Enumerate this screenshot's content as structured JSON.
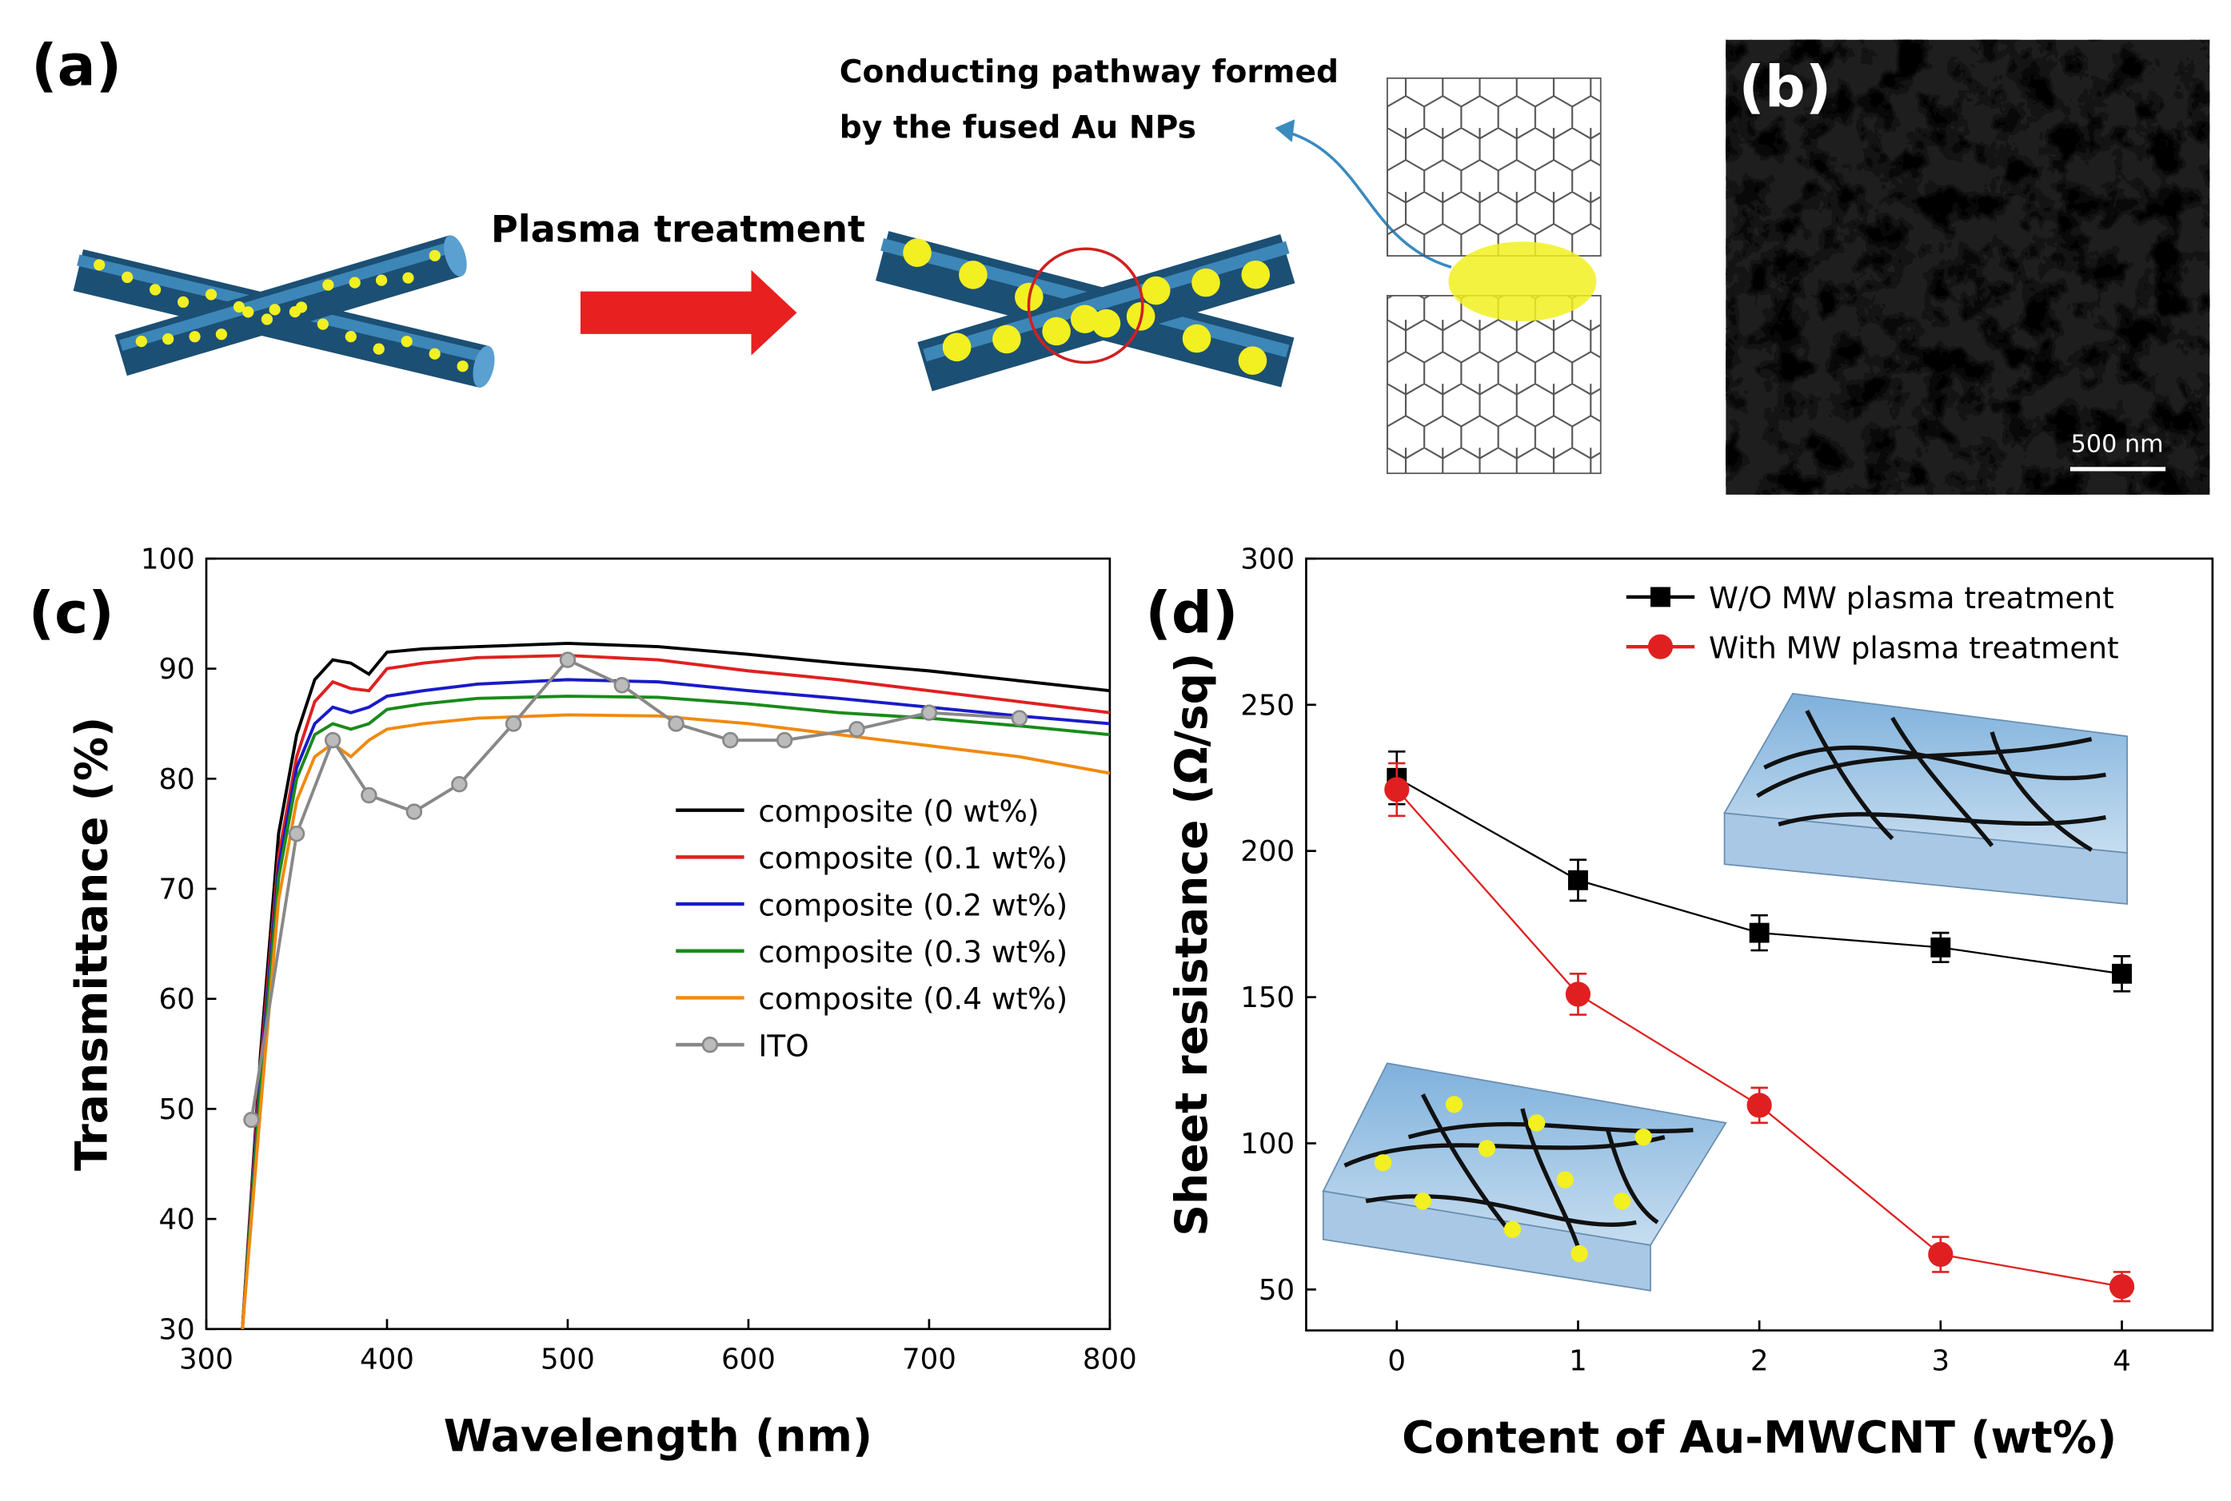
{
  "panel_a": {
    "label": "(a)",
    "process": "Plasma treatment",
    "annotation": [
      "Conducting pathway formed",
      "by the fused Au NPs"
    ]
  },
  "panel_b": {
    "label": "(b)",
    "scale_bar": "500 nm"
  },
  "chart_data": [
    {
      "type": "line",
      "panel_label": "(c)",
      "x_label": "Wavelength (nm)",
      "y_label": "Transmittance (%)",
      "xlim": [
        300,
        800
      ],
      "ylim": [
        30,
        100
      ],
      "xticks": [
        300,
        400,
        500,
        600,
        700,
        800
      ],
      "yticks": [
        30,
        40,
        50,
        60,
        70,
        80,
        90,
        100
      ],
      "legend": "center right",
      "x": [
        320,
        330,
        340,
        350,
        360,
        370,
        380,
        390,
        400,
        420,
        450,
        500,
        550,
        600,
        650,
        700,
        750,
        800
      ],
      "series": [
        {
          "name": "composite (0 wt%)",
          "color": "#000000",
          "values": [
            30,
            55,
            75,
            84,
            89,
            90.8,
            90.5,
            89.5,
            91.5,
            91.8,
            92,
            92.3,
            92,
            91.3,
            90.5,
            89.8,
            88.9,
            88
          ]
        },
        {
          "name": "composite (0.1 wt%)",
          "color": "#e02020",
          "values": [
            30,
            54,
            73,
            82,
            87,
            88.8,
            88.2,
            88,
            90,
            90.5,
            91,
            91.2,
            90.8,
            89.8,
            89,
            88,
            87,
            86
          ]
        },
        {
          "name": "composite (0.2 wt%)",
          "color": "#1a1ac8",
          "values": [
            30,
            53,
            72,
            81,
            85,
            86.5,
            86,
            86.5,
            87.5,
            88,
            88.6,
            89,
            88.8,
            88,
            87.3,
            86.5,
            85.7,
            85
          ]
        },
        {
          "name": "composite (0.3 wt%)",
          "color": "#1a8a1a",
          "values": [
            30,
            52,
            71,
            80,
            84,
            85,
            84.5,
            85,
            86.3,
            86.8,
            87.3,
            87.5,
            87.4,
            86.8,
            86,
            85.5,
            84.8,
            84
          ]
        },
        {
          "name": "composite (0.4 wt%)",
          "color": "#f08a10",
          "values": [
            30,
            50,
            69,
            78,
            82,
            83.2,
            82,
            83.5,
            84.5,
            85,
            85.5,
            85.8,
            85.7,
            85,
            84,
            83,
            82,
            80.5
          ]
        },
        {
          "name": "ITO",
          "color": "#888888",
          "marker": "circle",
          "x": [
            325,
            350,
            370,
            390,
            415,
            440,
            470,
            500,
            530,
            560,
            590,
            620,
            660,
            700,
            750
          ],
          "values": [
            49,
            75,
            83.5,
            78.5,
            77,
            79.5,
            85,
            90.8,
            88.5,
            85,
            83.5,
            83.5,
            84.5,
            86,
            85.5
          ]
        }
      ]
    },
    {
      "type": "line",
      "panel_label": "(d)",
      "x_label": "Content of Au-MWCNT (wt%)",
      "y_label": "Sheet resistance (Ω/sq)",
      "xlim": [
        -0.5,
        4.5
      ],
      "ylim": [
        36,
        300
      ],
      "xticks": [
        0,
        1,
        2,
        3,
        4
      ],
      "yticks": [
        50,
        100,
        150,
        200,
        250,
        300
      ],
      "legend": "upper right",
      "x": [
        0,
        1,
        2,
        3,
        4
      ],
      "series": [
        {
          "name": "W/O MW plasma treatment",
          "color": "#000000",
          "marker": "square",
          "values": [
            225,
            190,
            172,
            167,
            158
          ],
          "errors": [
            9,
            7,
            6,
            5,
            6
          ]
        },
        {
          "name": "With MW plasma treatment",
          "color": "#e02020",
          "marker": "circle",
          "values": [
            221,
            151,
            113,
            62,
            51
          ],
          "errors": [
            9,
            7,
            6,
            6,
            5
          ]
        }
      ]
    }
  ]
}
